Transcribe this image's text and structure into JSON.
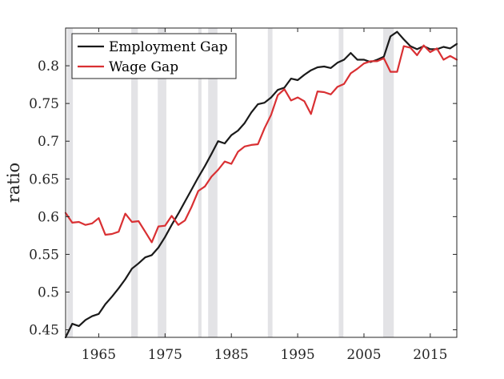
{
  "chart_data": {
    "type": "line",
    "title": "",
    "xlabel": "",
    "ylabel": "ratio",
    "xlim": [
      1960,
      2019
    ],
    "ylim": [
      0.44,
      0.85
    ],
    "x_ticks": [
      1965,
      1975,
      1985,
      1995,
      2005,
      2015
    ],
    "y_ticks": [
      0.45,
      0.5,
      0.55,
      0.6,
      0.65,
      0.7,
      0.75,
      0.8
    ],
    "y_tick_labels": [
      "0.45",
      "0.5",
      "0.55",
      "0.6",
      "0.65",
      "0.7",
      "0.75",
      "0.8"
    ],
    "grid": false,
    "legend_position": "top-left",
    "shaded_periods": [
      [
        1960.2,
        1961.1
      ],
      [
        1969.9,
        1970.9
      ],
      [
        1973.9,
        1975.2
      ],
      [
        1980.0,
        1980.5
      ],
      [
        1981.5,
        1982.9
      ],
      [
        1990.5,
        1991.2
      ],
      [
        2001.2,
        2001.9
      ],
      [
        2007.9,
        2009.5
      ]
    ],
    "series": [
      {
        "name": "Employment Gap",
        "color": "#1a1a1a",
        "x": [
          1960,
          1961,
          1962,
          1963,
          1964,
          1965,
          1966,
          1967,
          1968,
          1969,
          1970,
          1971,
          1972,
          1973,
          1974,
          1975,
          1976,
          1977,
          1978,
          1979,
          1980,
          1981,
          1982,
          1983,
          1984,
          1985,
          1986,
          1987,
          1988,
          1989,
          1990,
          1991,
          1992,
          1993,
          1994,
          1995,
          1996,
          1997,
          1998,
          1999,
          2000,
          2001,
          2002,
          2003,
          2004,
          2005,
          2006,
          2007,
          2008,
          2009,
          2010,
          2011,
          2012,
          2013,
          2014,
          2015,
          2016,
          2017,
          2018,
          2019
        ],
        "values": [
          0.44,
          0.458,
          0.455,
          0.463,
          0.468,
          0.471,
          0.484,
          0.494,
          0.505,
          0.517,
          0.531,
          0.538,
          0.546,
          0.549,
          0.559,
          0.573,
          0.589,
          0.604,
          0.62,
          0.636,
          0.652,
          0.667,
          0.683,
          0.7,
          0.697,
          0.708,
          0.714,
          0.724,
          0.738,
          0.749,
          0.751,
          0.758,
          0.768,
          0.771,
          0.783,
          0.781,
          0.788,
          0.794,
          0.798,
          0.799,
          0.797,
          0.804,
          0.808,
          0.817,
          0.808,
          0.808,
          0.805,
          0.808,
          0.812,
          0.839,
          0.845,
          0.835,
          0.826,
          0.822,
          0.826,
          0.822,
          0.822,
          0.825,
          0.823,
          0.829
        ]
      },
      {
        "name": "Wage Gap",
        "color": "#d93033",
        "x": [
          1960,
          1961,
          1962,
          1963,
          1964,
          1965,
          1966,
          1967,
          1968,
          1969,
          1970,
          1971,
          1972,
          1973,
          1974,
          1975,
          1976,
          1977,
          1978,
          1979,
          1980,
          1981,
          1982,
          1983,
          1984,
          1985,
          1986,
          1987,
          1988,
          1989,
          1990,
          1991,
          1992,
          1993,
          1994,
          1995,
          1996,
          1997,
          1998,
          1999,
          2000,
          2001,
          2002,
          2003,
          2004,
          2005,
          2006,
          2007,
          2008,
          2009,
          2010,
          2011,
          2012,
          2013,
          2014,
          2015,
          2016,
          2017,
          2018,
          2019
        ],
        "values": [
          0.605,
          0.592,
          0.593,
          0.589,
          0.591,
          0.598,
          0.576,
          0.577,
          0.58,
          0.604,
          0.593,
          0.594,
          0.58,
          0.566,
          0.587,
          0.588,
          0.601,
          0.589,
          0.595,
          0.613,
          0.634,
          0.64,
          0.653,
          0.662,
          0.673,
          0.67,
          0.686,
          0.693,
          0.695,
          0.696,
          0.717,
          0.735,
          0.761,
          0.769,
          0.754,
          0.758,
          0.753,
          0.736,
          0.766,
          0.765,
          0.762,
          0.772,
          0.776,
          0.79,
          0.796,
          0.803,
          0.806,
          0.806,
          0.81,
          0.792,
          0.792,
          0.826,
          0.824,
          0.814,
          0.827,
          0.818,
          0.823,
          0.808,
          0.813,
          0.808
        ]
      }
    ]
  }
}
